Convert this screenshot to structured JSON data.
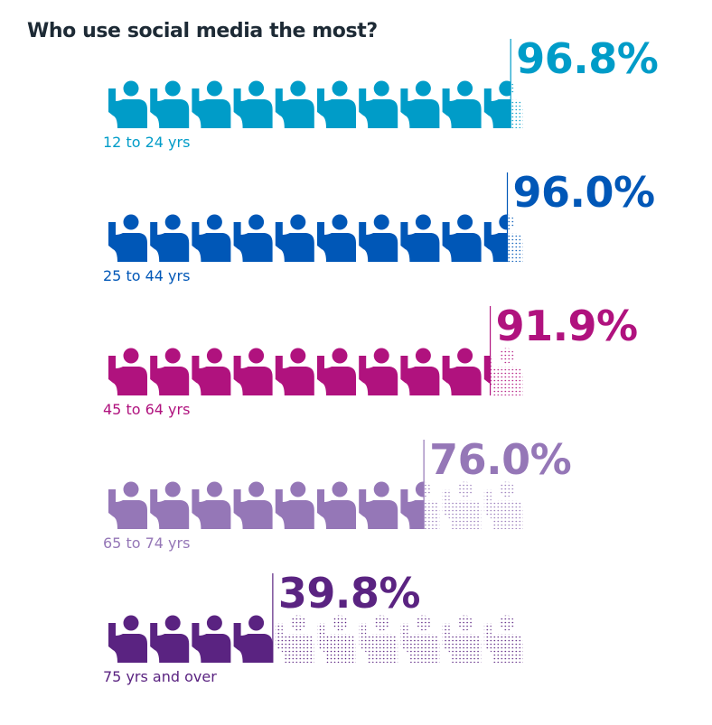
{
  "chart_data": {
    "type": "pictogram",
    "title": "Who use social media the most?",
    "icons_per_row": 10,
    "unit": "%",
    "rows": [
      {
        "label": "12 to 24 yrs",
        "value": 96.8,
        "display": "96.8%",
        "color": "#009cc8"
      },
      {
        "label": "25 to 44 yrs",
        "value": 96.0,
        "display": "96.0%",
        "color": "#0057b7"
      },
      {
        "label": "45 to 64 yrs",
        "value": 91.9,
        "display": "91.9%",
        "color": "#b0127e"
      },
      {
        "label": "65 to 74 yrs",
        "value": 76.0,
        "display": "76.0%",
        "color": "#9577b7"
      },
      {
        "label": "75 yrs and over",
        "value": 39.8,
        "display": "39.8%",
        "color": "#5a2381"
      }
    ]
  }
}
